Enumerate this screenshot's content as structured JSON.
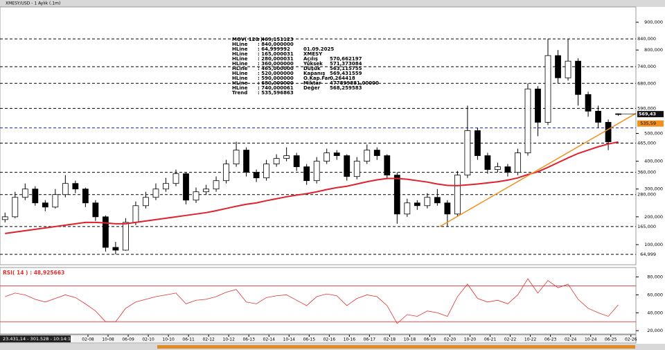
{
  "window_title": "XMESY/USD - 1 Aylık (.1m)",
  "status": "23.431,14 - 301.528 - 10:14:10",
  "chart_data": [
    {
      "type": "candlestick",
      "x": [
        "2005-05",
        "2005-09",
        "2006-01",
        "2006-05",
        "2006-09",
        "2007-01",
        "2007-05",
        "2007-09",
        "2008-01",
        "2008-05",
        "2008-09",
        "2009-01",
        "2009-05",
        "2009-09",
        "2010-01",
        "2010-05",
        "2010-09",
        "2011-01",
        "2011-05",
        "2011-09",
        "2012-01",
        "2012-05",
        "2012-09",
        "2013-01",
        "2013-05",
        "2013-09",
        "2014-01",
        "2014-05",
        "2014-09",
        "2015-01",
        "2015-05",
        "2015-09",
        "2016-01",
        "2016-05",
        "2016-09",
        "2017-01",
        "2017-05",
        "2017-09",
        "2018-01",
        "2018-05",
        "2018-09",
        "2019-01",
        "2019-05",
        "2019-09",
        "2020-01",
        "2020-05",
        "2020-09",
        "2021-01",
        "2021-05",
        "2021-09",
        "2022-01",
        "2022-05",
        "2022-09",
        "2023-01",
        "2023-05",
        "2023-09",
        "2024-01",
        "2024-05",
        "2024-09",
        "2025-01",
        "2025-05",
        "2025-09"
      ],
      "open": [
        190,
        200,
        270,
        300,
        250,
        235,
        280,
        320,
        300,
        250,
        200,
        90,
        80,
        180,
        240,
        270,
        300,
        320,
        355,
        260,
        290,
        300,
        330,
        390,
        440,
        360,
        340,
        390,
        410,
        420,
        380,
        330,
        400,
        430,
        420,
        345,
        400,
        440,
        420,
        350,
        210,
        250,
        240,
        270,
        250,
        210,
        350,
        510,
        420,
        370,
        380,
        360,
        430,
        660,
        540,
        780,
        700,
        760,
        640,
        580,
        540,
        570.662197
      ],
      "high": [
        215,
        290,
        320,
        310,
        260,
        300,
        350,
        330,
        305,
        260,
        205,
        110,
        195,
        255,
        290,
        320,
        340,
        370,
        360,
        305,
        315,
        345,
        405,
        470,
        450,
        370,
        405,
        425,
        450,
        430,
        390,
        415,
        445,
        440,
        425,
        415,
        460,
        450,
        425,
        360,
        265,
        260,
        285,
        300,
        260,
        365,
        600,
        520,
        430,
        395,
        390,
        445,
        680,
        670,
        840,
        800,
        840,
        770,
        650,
        600,
        550,
        571.373084
      ],
      "low": [
        180,
        195,
        260,
        240,
        220,
        230,
        270,
        285,
        235,
        185,
        75,
        65,
        78,
        170,
        230,
        260,
        290,
        310,
        245,
        250,
        280,
        290,
        320,
        380,
        345,
        325,
        330,
        380,
        400,
        365,
        315,
        320,
        390,
        405,
        330,
        335,
        390,
        405,
        335,
        175,
        200,
        225,
        230,
        240,
        165,
        200,
        340,
        405,
        355,
        360,
        345,
        350,
        420,
        490,
        530,
        680,
        690,
        600,
        560,
        520,
        440,
        563.115755
      ],
      "close": [
        200,
        270,
        300,
        250,
        235,
        280,
        320,
        300,
        250,
        200,
        90,
        80,
        180,
        240,
        270,
        300,
        320,
        355,
        260,
        290,
        300,
        330,
        390,
        440,
        360,
        340,
        390,
        410,
        420,
        380,
        330,
        400,
        430,
        420,
        345,
        400,
        440,
        420,
        350,
        210,
        250,
        240,
        270,
        250,
        210,
        350,
        510,
        420,
        370,
        380,
        360,
        430,
        660,
        540,
        780,
        700,
        760,
        640,
        580,
        540,
        470,
        569.431559
      ],
      "up_color": "#ffffff",
      "down_color": "#000000",
      "ma": {
        "name": "MOV( 120 )",
        "value_label": ": 469,151123",
        "color": "#e0202a",
        "values": [
          140,
          145,
          150,
          155,
          160,
          165,
          170,
          175,
          180,
          180,
          178,
          175,
          175,
          180,
          185,
          190,
          195,
          200,
          205,
          210,
          215,
          222,
          230,
          238,
          245,
          250,
          258,
          265,
          272,
          278,
          283,
          290,
          298,
          305,
          310,
          318,
          326,
          333,
          338,
          338,
          335,
          330,
          325,
          318,
          313,
          312,
          315,
          318,
          322,
          326,
          332,
          340,
          352,
          362,
          378,
          395,
          412,
          428,
          440,
          452,
          462,
          469.151123
        ]
      },
      "hlines": [
        {
          "name": "HLine",
          "value": 840,
          "value_label": ": 840,000000",
          "axis_label": "840,000",
          "color": "#000000"
        },
        {
          "name": "HLine",
          "value": 64.999992,
          "value_label": ": 64,999992",
          "axis_label": "64,999",
          "color": "#000000"
        },
        {
          "name": "HLine",
          "value": 165.000031,
          "value_label": ": 165,000031",
          "axis_label": "165,000",
          "color": "#000000"
        },
        {
          "name": "HLine",
          "value": 280.000031,
          "value_label": ": 280,000031",
          "axis_label": "280,000",
          "color": "#000000"
        },
        {
          "name": "HLine",
          "value": 360,
          "value_label": ": 360,000000",
          "axis_label": "360,000",
          "color": "#000000"
        },
        {
          "name": "HLine",
          "value": 465,
          "value_label": ": 465,000000",
          "axis_label": "465,000",
          "color": "#000000"
        },
        {
          "name": "HLine",
          "value": 520,
          "value_label": ": 520,000000",
          "color": "#2020e0"
        },
        {
          "name": "HLine",
          "value": 590,
          "value_label": ": 590,000000",
          "axis_label": "590,000",
          "color": "#000000"
        },
        {
          "name": "HLine",
          "value": 680,
          "value_label": ": 680,000000",
          "axis_label": "680,000",
          "color": "#000000"
        },
        {
          "name": "HLine",
          "value": 740.000061,
          "value_label": ": 740,000061",
          "axis_label": "740,000",
          "color": "#000000"
        }
      ],
      "trend": {
        "name": "Trend",
        "value_label": ": 535,596863",
        "axis_label": "535,59",
        "color": "#f0901e",
        "x": [
          "2019-10",
          "2025-09"
        ],
        "values": [
          165,
          535.596863
        ]
      },
      "last_label": "569,43",
      "info": {
        "date": "01.09.2025",
        "symbol": "XMESY",
        "rows": [
          [
            "Açılış",
            "570,662197"
          ],
          [
            "Yüksek",
            "571,373084"
          ],
          [
            "Düşük",
            "563,115755"
          ],
          [
            "Kapanış",
            "569,431559"
          ],
          [
            "O.Kap.Far",
            "0,264418"
          ],
          [
            "Miktar",
            "477899881,00000"
          ],
          [
            "Değer",
            "568,259583"
          ]
        ]
      },
      "xlim": [
        "2005-03",
        "2026-04"
      ],
      "xticks": [
        "02-08",
        "10-08",
        "06-09",
        "02-10",
        "10-10",
        "06-11",
        "02-12",
        "10-12",
        "06-13",
        "02-14",
        "10-14",
        "06-15",
        "02-16",
        "10-16",
        "06-17",
        "02-18",
        "10-18",
        "06-19",
        "02-20",
        "10-20",
        "06-21",
        "02-22",
        "10-22",
        "06-23",
        "02-24",
        "10-24",
        "06-25",
        "02-26"
      ],
      "ylim": [
        40,
        950
      ],
      "yticks": [
        {
          "value": 100,
          "label": "100,000"
        },
        {
          "value": 200,
          "label": "200,000"
        },
        {
          "value": 300,
          "label": "300,000"
        },
        {
          "value": 400,
          "label": "400,000"
        },
        {
          "value": 500,
          "label": "500,000"
        },
        {
          "value": 800,
          "label": "800,000"
        },
        {
          "value": 900,
          "label": "900,000"
        }
      ]
    },
    {
      "type": "line",
      "title": "RSI( 14 ) : 48,925663",
      "color": "#e03030",
      "values": [
        58,
        62,
        60,
        55,
        52,
        56,
        60,
        57,
        50,
        42,
        30,
        30,
        45,
        52,
        55,
        58,
        60,
        62,
        50,
        54,
        55,
        58,
        63,
        66,
        52,
        50,
        57,
        59,
        60,
        54,
        48,
        58,
        61,
        59,
        48,
        56,
        60,
        58,
        48,
        28,
        38,
        36,
        42,
        40,
        36,
        58,
        72,
        56,
        52,
        54,
        50,
        60,
        78,
        62,
        76,
        68,
        72,
        55,
        45,
        40,
        36,
        48.925663
      ],
      "levels": [
        70,
        30
      ],
      "ylim": [
        17,
        89
      ],
      "yticks": [
        {
          "value": 20,
          "label": "20,000"
        },
        {
          "value": 40,
          "label": "40,000"
        },
        {
          "value": 60,
          "label": "60,000"
        },
        {
          "value": 80,
          "label": "80,000"
        }
      ]
    }
  ]
}
